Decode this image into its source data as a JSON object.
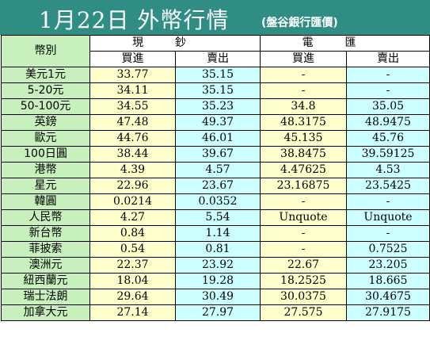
{
  "title": "1月22日 外幣行情",
  "subtitle": "(盤谷銀行匯價)",
  "header": {
    "currency_label": "幣別",
    "cash_label": "現鈔",
    "telegraphic_label": "電匯",
    "buy_label": "買進",
    "sell_label": "賣出"
  },
  "rows": [
    {
      "currency": "美元1元",
      "cash_buy": "33.77",
      "cash_sell": "35.15",
      "tt_buy": "-",
      "tt_sell": "-"
    },
    {
      "currency": "5-20元",
      "cash_buy": "34.11",
      "cash_sell": "35.15",
      "tt_buy": "-",
      "tt_sell": "-"
    },
    {
      "currency": "50-100元",
      "cash_buy": "34.55",
      "cash_sell": "35.23",
      "tt_buy": "34.8",
      "tt_sell": "35.05"
    },
    {
      "currency": "英鎊",
      "cash_buy": "47.48",
      "cash_sell": "49.37",
      "tt_buy": "48.3175",
      "tt_sell": "48.9475"
    },
    {
      "currency": "歐元",
      "cash_buy": "44.76",
      "cash_sell": "46.01",
      "tt_buy": "45.135",
      "tt_sell": "45.76"
    },
    {
      "currency": "100日圓",
      "cash_buy": "38.44",
      "cash_sell": "39.67",
      "tt_buy": "38.8475",
      "tt_sell": "39.59125"
    },
    {
      "currency": "港幣",
      "cash_buy": "4.39",
      "cash_sell": "4.57",
      "tt_buy": "4.47625",
      "tt_sell": "4.53"
    },
    {
      "currency": "星元",
      "cash_buy": "22.96",
      "cash_sell": "23.67",
      "tt_buy": "23.16875",
      "tt_sell": "23.5425"
    },
    {
      "currency": "韓圓",
      "cash_buy": "0.0214",
      "cash_sell": "0.0352",
      "tt_buy": "-",
      "tt_sell": "-"
    },
    {
      "currency": "人民幣",
      "cash_buy": "4.27",
      "cash_sell": "5.54",
      "tt_buy": "Unquote",
      "tt_sell": "Unquote"
    },
    {
      "currency": "新台幣",
      "cash_buy": "0.84",
      "cash_sell": "1.14",
      "tt_buy": "-",
      "tt_sell": "-"
    },
    {
      "currency": "菲披索",
      "cash_buy": "0.54",
      "cash_sell": "0.81",
      "tt_buy": "-",
      "tt_sell": "0.7525"
    },
    {
      "currency": "澳洲元",
      "cash_buy": "22.37",
      "cash_sell": "23.92",
      "tt_buy": "22.67",
      "tt_sell": "23.205"
    },
    {
      "currency": "紐西蘭元",
      "cash_buy": "18.04",
      "cash_sell": "19.28",
      "tt_buy": "18.2525",
      "tt_sell": "18.665"
    },
    {
      "currency": "瑞士法朗",
      "cash_buy": "29.64",
      "cash_sell": "30.49",
      "tt_buy": "30.0375",
      "tt_sell": "30.4675"
    },
    {
      "currency": "加拿大元",
      "cash_buy": "27.14",
      "cash_sell": "27.97",
      "tt_buy": "27.575",
      "tt_sell": "27.9175"
    }
  ],
  "colors": {
    "header_bg": "#2f8d83",
    "currency_col_bg": "#c7f0bd",
    "buy_col_bg": "#ffffcc",
    "sell_col_bg": "#ccffff"
  }
}
